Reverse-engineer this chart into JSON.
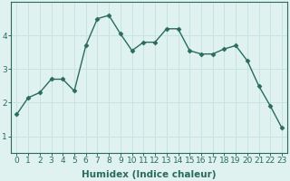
{
  "x": [
    0,
    1,
    2,
    3,
    4,
    5,
    6,
    7,
    8,
    9,
    10,
    11,
    12,
    13,
    14,
    15,
    16,
    17,
    18,
    19,
    20,
    21,
    22,
    23
  ],
  "y": [
    1.65,
    2.15,
    2.3,
    2.7,
    2.7,
    2.35,
    3.7,
    4.5,
    4.6,
    4.05,
    3.55,
    3.8,
    3.8,
    4.2,
    4.2,
    3.55,
    3.45,
    3.45,
    3.6,
    3.7,
    3.25,
    2.5,
    1.9,
    1.25
  ],
  "xlabel": "Humidex (Indice chaleur)",
  "xticks": [
    0,
    1,
    2,
    3,
    4,
    5,
    6,
    7,
    8,
    9,
    10,
    11,
    12,
    13,
    14,
    15,
    16,
    17,
    18,
    19,
    20,
    21,
    22,
    23
  ],
  "yticks": [
    1,
    2,
    3,
    4
  ],
  "ylim": [
    0.5,
    5.0
  ],
  "xlim": [
    -0.5,
    23.5
  ],
  "line_color": "#2a6b5e",
  "marker": "D",
  "markersize": 2.5,
  "linewidth": 1.0,
  "bg_color": "#dff2f0",
  "grid_color": "#c8e4e0",
  "tick_label_fontsize": 6.5,
  "xlabel_fontsize": 7.5,
  "spine_color": "#2a6b5e"
}
